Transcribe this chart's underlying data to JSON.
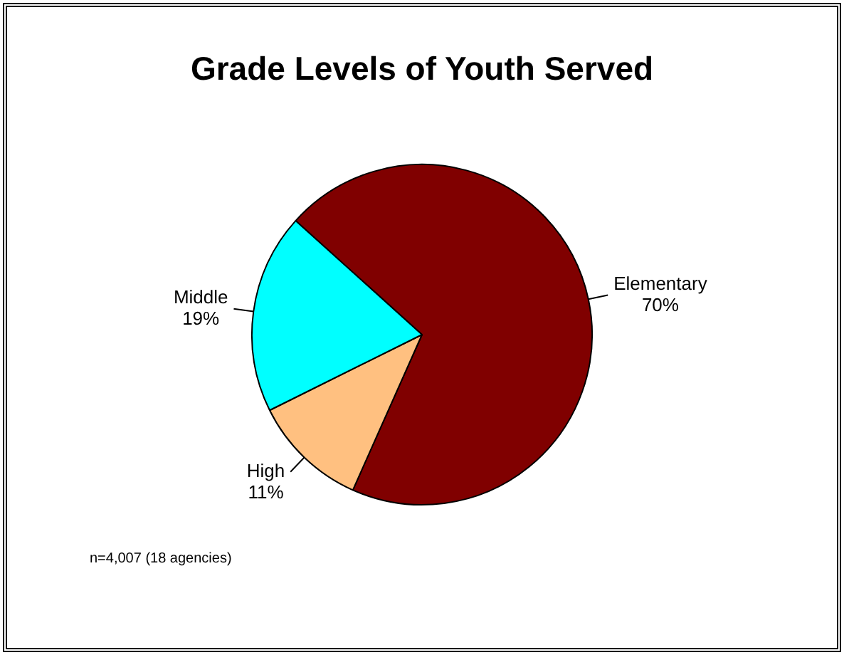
{
  "chart_data": {
    "type": "pie",
    "title": "Grade Levels of Youth Served",
    "categories": [
      "Elementary",
      "High",
      "Middle"
    ],
    "values": [
      70,
      11,
      19
    ],
    "value_labels": [
      "70%",
      "11%",
      "19%"
    ],
    "colors": [
      "#800000",
      "#ffc080",
      "#00ffff"
    ],
    "legend": false,
    "annotations": [
      "n=4,007 (18 agencies)"
    ]
  }
}
